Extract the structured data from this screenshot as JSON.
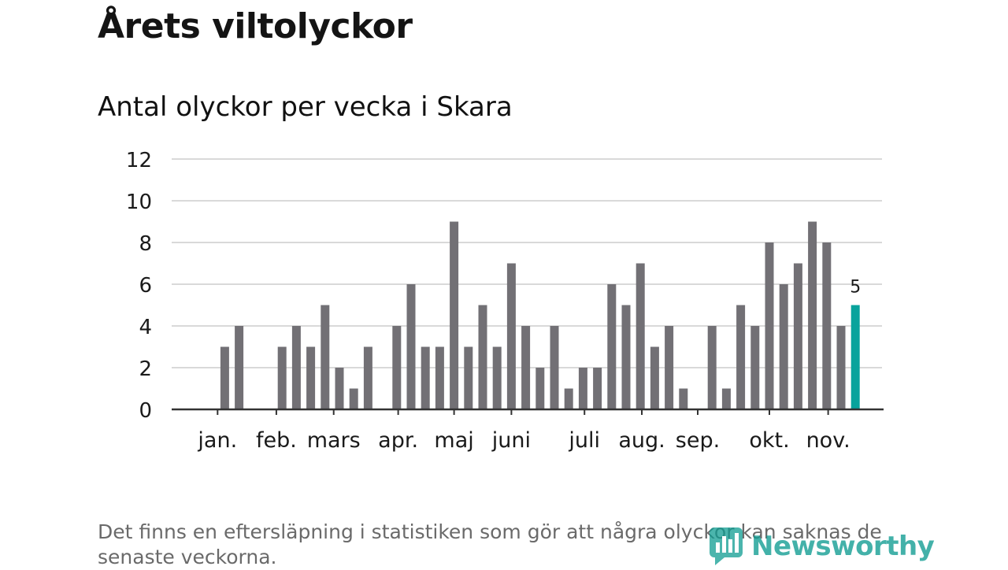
{
  "title": "Årets viltolyckor",
  "subtitle": "Antal olyckor per vecka i Skara",
  "footnote": "Det finns en eftersläpning i statistiken som gör att några olyckor kan saknas de senaste veckorna.",
  "logo": {
    "text": "Newsworthy",
    "icon": "newsworthy-logo-icon"
  },
  "colors": {
    "bar": "#727075",
    "highlight": "#08a39c",
    "grid": "#d9d9d9",
    "axis": "#333333"
  },
  "chart_data": {
    "type": "bar",
    "title": "Antal olyckor per vecka i Skara",
    "xlabel": "",
    "ylabel": "",
    "ylim": [
      0,
      12
    ],
    "yticks": [
      0,
      2,
      4,
      6,
      8,
      10,
      12
    ],
    "grid": true,
    "weeks": [
      1,
      2,
      3,
      4,
      5,
      6,
      7,
      8,
      9,
      10,
      11,
      12,
      13,
      14,
      15,
      16,
      17,
      18,
      19,
      20,
      21,
      22,
      23,
      24,
      25,
      26,
      27,
      28,
      29,
      30,
      31,
      32,
      33,
      34,
      35,
      36,
      37,
      38,
      39,
      40,
      41,
      42,
      43,
      44,
      45,
      46,
      47,
      48
    ],
    "values": [
      0,
      0,
      3,
      4,
      0,
      0,
      3,
      4,
      3,
      5,
      2,
      1,
      3,
      0,
      4,
      6,
      3,
      3,
      9,
      3,
      5,
      3,
      7,
      4,
      2,
      4,
      1,
      2,
      2,
      6,
      5,
      7,
      3,
      4,
      1,
      0,
      4,
      1,
      5,
      4,
      8,
      6,
      7,
      9,
      8,
      4,
      5,
      null
    ],
    "highlight_week": 47,
    "highlight_label": "5",
    "month_labels": [
      {
        "label": "jan.",
        "week": 2.5
      },
      {
        "label": "feb.",
        "week": 6.6
      },
      {
        "label": "mars",
        "week": 10.6
      },
      {
        "label": "apr.",
        "week": 15.1
      },
      {
        "label": "maj",
        "week": 19.0
      },
      {
        "label": "juni",
        "week": 23.0
      },
      {
        "label": "juli",
        "week": 28.1
      },
      {
        "label": "aug.",
        "week": 32.1
      },
      {
        "label": "sep.",
        "week": 36.0
      },
      {
        "label": "okt.",
        "week": 41.0
      },
      {
        "label": "nov.",
        "week": 45.1
      }
    ]
  }
}
